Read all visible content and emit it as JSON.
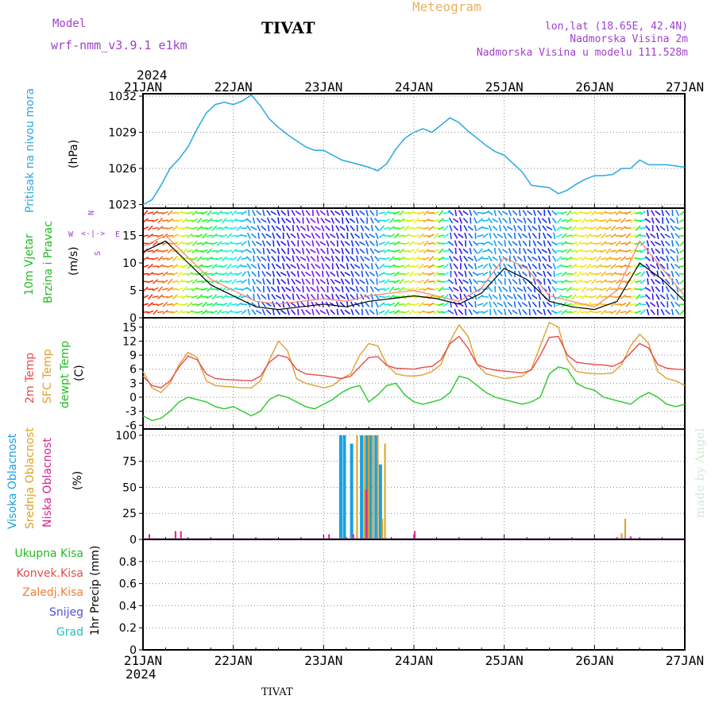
{
  "header": {
    "model_label": "Model",
    "model_name": "wrf-nmm_v3.9.1  e1km",
    "station": "TIVAT",
    "meteogram": "Meteogram",
    "lonlat": "lon,lat (18.65E, 42.4N)",
    "elevation": "Nadmorska Visina 2m",
    "model_elevation": "Nadmorska Visina u modelu 111.528m",
    "year_top": "2024",
    "year_bottom": "2024",
    "footer": "TIVAT",
    "watermark": "made by Angel"
  },
  "colors": {
    "pressure": "#2aa8e0",
    "temp2m": "#e84a4a",
    "sfc": "#e0a030",
    "dewpt": "#2ac82a",
    "cloud_high": "#1aa0e0",
    "cloud_mid": "#e0a020",
    "cloud_low": "#e0208a",
    "violet": "#a040d0",
    "green_label": "#22bb22"
  },
  "chart_data": [
    {
      "type": "line",
      "panel": "pressure",
      "ylabel": "Pritisak na nivou mora",
      "unit": "(hPa)",
      "ylim": [
        1022.7,
        1032.2
      ],
      "yticks": [
        "1023",
        "1026",
        "1029",
        "1032"
      ],
      "x_days": [
        0.0,
        0.1,
        0.2,
        0.3,
        0.4,
        0.5,
        0.6,
        0.7,
        0.8,
        0.9,
        1.0,
        1.1,
        1.2,
        1.3,
        1.4,
        1.5,
        1.6,
        1.7,
        1.8,
        1.9,
        2.0,
        2.1,
        2.2,
        2.3,
        2.4,
        2.5,
        2.6,
        2.7,
        2.8,
        2.9,
        3.0,
        3.1,
        3.2,
        3.3,
        3.4,
        3.5,
        3.6,
        3.7,
        3.8,
        3.9,
        4.0,
        4.1,
        4.2,
        4.3,
        4.4,
        4.5,
        4.6,
        4.7,
        4.8,
        4.9,
        5.0,
        5.1,
        5.2,
        5.3,
        5.4,
        5.5,
        5.6,
        5.7,
        5.8,
        5.9,
        6.0
      ],
      "values": [
        1023.0,
        1023.4,
        1024.6,
        1026.0,
        1026.8,
        1027.8,
        1029.3,
        1030.6,
        1031.3,
        1031.5,
        1031.3,
        1031.6,
        1032.1,
        1031.2,
        1030.1,
        1029.4,
        1028.8,
        1028.3,
        1027.8,
        1027.5,
        1027.5,
        1027.1,
        1026.7,
        1026.5,
        1026.3,
        1026.1,
        1025.8,
        1026.4,
        1027.6,
        1028.5,
        1029.0,
        1029.3,
        1029.0,
        1029.6,
        1030.2,
        1029.8,
        1029.1,
        1028.5,
        1027.9,
        1027.4,
        1027.1,
        1026.4,
        1025.7,
        1024.6,
        1024.5,
        1024.4,
        1023.9,
        1024.2,
        1024.7,
        1025.1,
        1025.4,
        1025.4,
        1025.5,
        1026.0,
        1026.0,
        1026.7,
        1026.3,
        1026.3,
        1026.3,
        1026.2,
        1026.1
      ]
    },
    {
      "type": "line",
      "panel": "wind",
      "ylabel": "10m Vjetar Brzina i Pravac",
      "unit": "(m/s)",
      "ylim": [
        0,
        20
      ],
      "yticks": [
        "0",
        "5",
        "10",
        "15"
      ],
      "legend_compass": "N / E / W / S",
      "x_days": [
        0.0,
        0.25,
        0.5,
        0.75,
        1.0,
        1.25,
        1.5,
        1.75,
        2.0,
        2.25,
        2.5,
        2.75,
        3.0,
        3.25,
        3.5,
        3.75,
        4.0,
        4.25,
        4.5,
        4.75,
        5.0,
        5.25,
        5.5,
        5.75,
        6.0
      ],
      "series": [
        {
          "values": [
            12,
            14,
            10,
            6,
            4,
            2,
            1.5,
            2,
            2.5,
            2,
            3,
            3.5,
            4,
            3.5,
            2.5,
            4.5,
            9,
            7,
            3,
            2,
            1.5,
            3,
            10,
            7,
            3
          ]
        },
        {
          "values": [
            13,
            15,
            11,
            7,
            5,
            3,
            2.5,
            3,
            3.5,
            3,
            4,
            4.5,
            5,
            4,
            3,
            5.5,
            11,
            9,
            4,
            3,
            2,
            5,
            14,
            9,
            4
          ]
        }
      ]
    },
    {
      "type": "line",
      "panel": "temperature",
      "unit": "(C)",
      "ylim": [
        -6.8,
        17
      ],
      "yticks": [
        "-6",
        "-3",
        "0",
        "3",
        "6",
        "9",
        "12",
        "15"
      ],
      "x_days": [
        0.0,
        0.1,
        0.2,
        0.3,
        0.4,
        0.5,
        0.6,
        0.7,
        0.8,
        0.9,
        1.0,
        1.1,
        1.2,
        1.3,
        1.4,
        1.5,
        1.6,
        1.7,
        1.8,
        1.9,
        2.0,
        2.1,
        2.2,
        2.3,
        2.4,
        2.5,
        2.6,
        2.7,
        2.8,
        2.9,
        3.0,
        3.1,
        3.2,
        3.3,
        3.4,
        3.5,
        3.6,
        3.7,
        3.8,
        3.9,
        4.0,
        4.1,
        4.2,
        4.3,
        4.4,
        4.5,
        4.6,
        4.7,
        4.8,
        4.9,
        5.0,
        5.1,
        5.2,
        5.3,
        5.4,
        5.5,
        5.6,
        5.7,
        5.8,
        5.9,
        6.0
      ],
      "series": [
        {
          "name": "2m Temp",
          "values": [
            4.5,
            2.5,
            2.0,
            3.5,
            6.5,
            8.8,
            8.0,
            5.0,
            4.0,
            3.8,
            3.7,
            3.6,
            3.5,
            4.5,
            7.5,
            9.0,
            8.5,
            6.0,
            5.0,
            4.8,
            4.6,
            4.3,
            4.0,
            4.5,
            6.5,
            8.5,
            8.7,
            6.8,
            6.2,
            6.1,
            6.0,
            6.4,
            6.6,
            8.0,
            11.5,
            13.0,
            10.5,
            7.0,
            6.2,
            5.8,
            5.6,
            5.4,
            5.2,
            5.8,
            9.0,
            12.8,
            13.0,
            9.0,
            7.5,
            7.2,
            7.0,
            6.9,
            6.6,
            7.5,
            9.5,
            11.5,
            10.5,
            7.0,
            6.2,
            6.0,
            5.9
          ]
        },
        {
          "name": "SFC Temp",
          "values": [
            5.5,
            2.0,
            1.0,
            3.0,
            7.0,
            9.6,
            8.5,
            3.5,
            2.5,
            2.3,
            2.2,
            2.0,
            2.0,
            3.5,
            8.0,
            12.0,
            10.0,
            4.0,
            3.0,
            2.5,
            2.0,
            2.5,
            4.0,
            5.0,
            9.0,
            11.5,
            11.0,
            7.0,
            5.0,
            4.6,
            4.5,
            4.8,
            5.5,
            7.0,
            12.0,
            15.5,
            13.0,
            7.0,
            5.0,
            4.5,
            4.0,
            4.2,
            4.5,
            6.0,
            11.0,
            16.0,
            15.0,
            8.0,
            5.5,
            5.2,
            5.0,
            5.0,
            5.2,
            7.0,
            11.0,
            13.5,
            11.5,
            5.5,
            4.0,
            3.5,
            2.5
          ]
        },
        {
          "name": "dewpt Temp",
          "values": [
            -4.0,
            -5.0,
            -4.5,
            -3.0,
            -1.0,
            0.0,
            -0.5,
            -1.0,
            -2.0,
            -2.5,
            -2.0,
            -3.0,
            -4.0,
            -3.0,
            -0.5,
            0.5,
            0.0,
            -1.0,
            -2.0,
            -2.5,
            -1.5,
            -0.5,
            1.0,
            2.0,
            2.5,
            -1.0,
            0.5,
            2.5,
            3.0,
            0.5,
            -1.0,
            -1.5,
            -1.0,
            -0.5,
            1.0,
            4.5,
            4.0,
            2.5,
            1.0,
            0.0,
            -0.5,
            -1.0,
            -1.5,
            -1.0,
            0.0,
            5.0,
            6.5,
            6.0,
            3.0,
            2.0,
            1.5,
            0.0,
            -0.5,
            -1.0,
            -1.5,
            0.0,
            1.0,
            0.0,
            -1.5,
            -2.0,
            -1.5
          ]
        }
      ]
    },
    {
      "type": "bar",
      "panel": "cloud",
      "unit": "(%)",
      "ylim": [
        0,
        106
      ],
      "yticks": [
        "0",
        "25",
        "50",
        "75",
        "100"
      ],
      "series": [
        {
          "name": "Visoka Oblacnost",
          "x_days": [
            2.19,
            2.23,
            2.31,
            2.42,
            2.48,
            2.52,
            2.58,
            2.63
          ],
          "values": [
            100,
            100,
            92,
            100,
            100,
            100,
            100,
            72
          ]
        },
        {
          "name": "Srednja Oblacnost",
          "x_days": [
            2.37,
            2.45,
            2.5,
            2.55,
            2.6,
            2.65,
            2.68,
            5.3,
            5.34
          ],
          "values": [
            100,
            100,
            100,
            100,
            100,
            20,
            92,
            6,
            20
          ]
        },
        {
          "name": "Niska Oblacnost",
          "x_days": [
            0.07,
            0.36,
            0.42,
            2.06,
            2.33,
            2.47,
            3.01,
            5.4
          ],
          "values": [
            5,
            8,
            8,
            5,
            5,
            48,
            8,
            3
          ]
        }
      ]
    },
    {
      "type": "bar",
      "panel": "precip",
      "unit": "1hr Precip (mm)",
      "ylim": [
        0,
        1.0
      ],
      "yticks": [
        "0",
        "0.2",
        "0.4",
        "0.6",
        "0.8"
      ],
      "series": [
        {
          "name": "Ukupna Kisa",
          "values": []
        },
        {
          "name": "Konvek.Kisa",
          "values": []
        },
        {
          "name": "Zaledj.Kisa",
          "values": []
        },
        {
          "name": "Snijeg",
          "values": []
        },
        {
          "name": "Grad",
          "values": []
        }
      ]
    }
  ],
  "x_axis": {
    "range_days": [
      0,
      6
    ],
    "labels": [
      "21JAN",
      "22JAN",
      "23JAN",
      "24JAN",
      "25JAN",
      "26JAN",
      "27JAN"
    ]
  }
}
